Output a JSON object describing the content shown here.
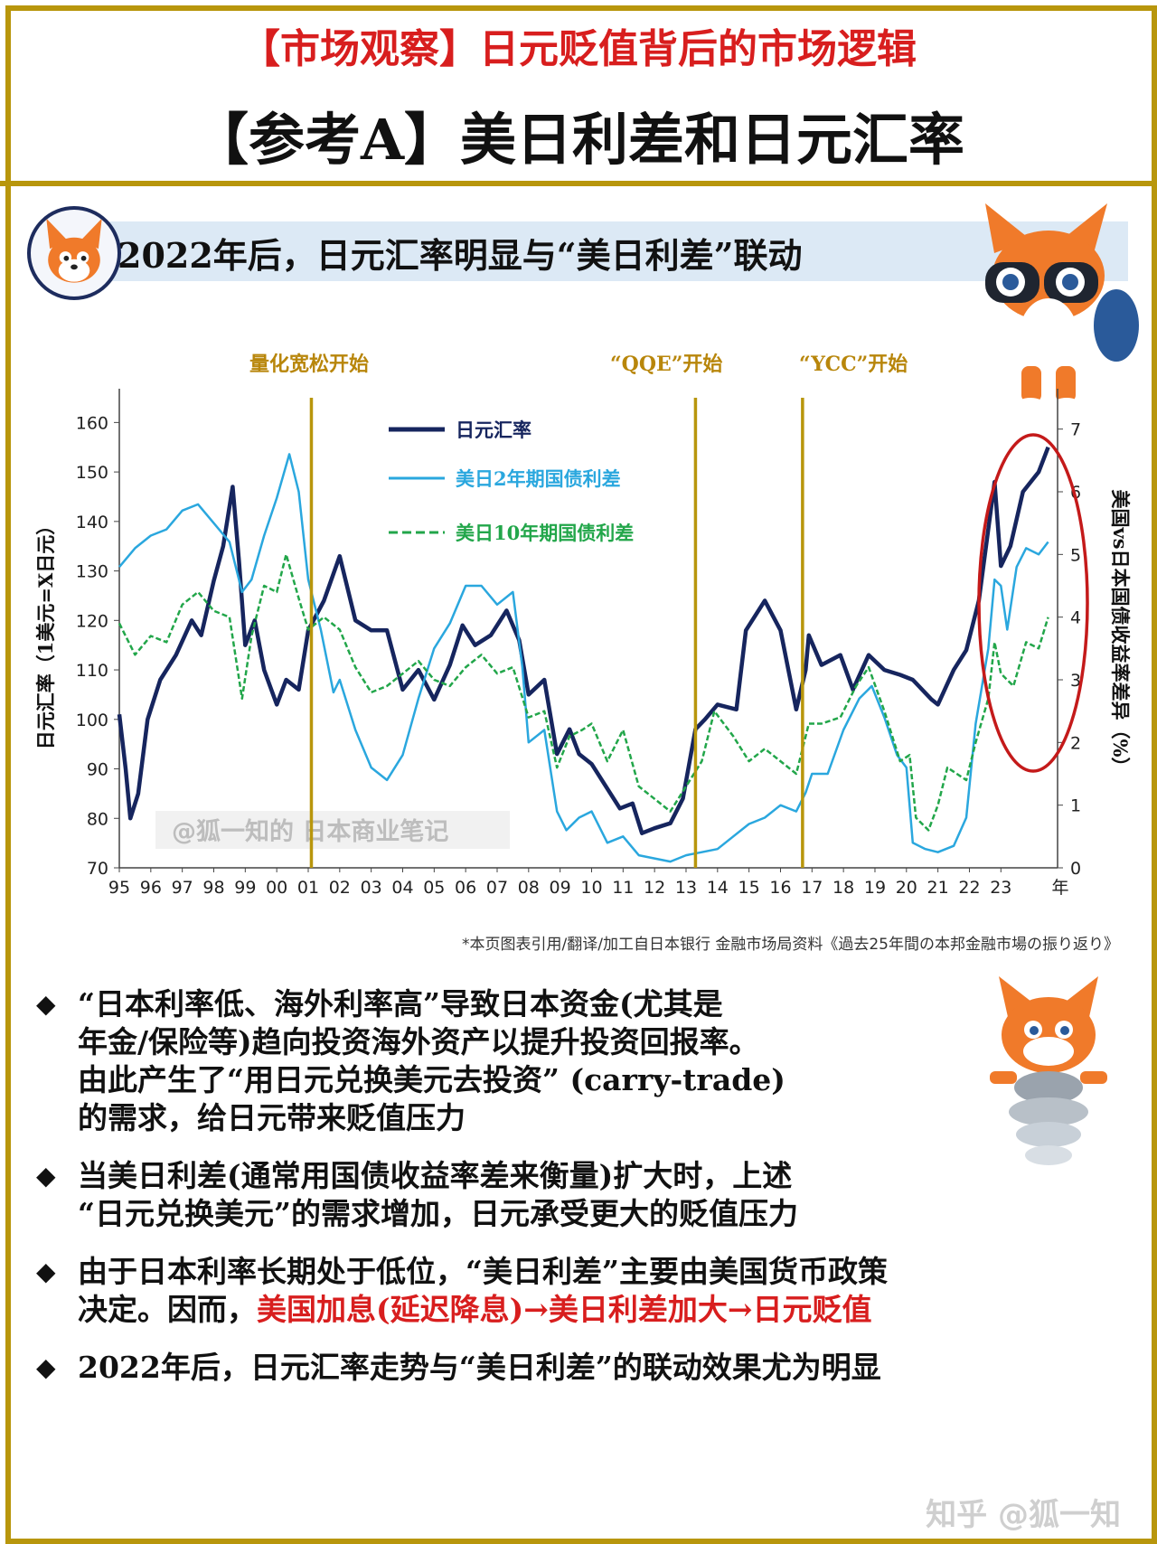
{
  "header": {
    "title": "【市场观察】日元贬值背后的市场逻辑",
    "subtitle": "【参考A】美日利差和日元汇率"
  },
  "section": {
    "heading": "2022年后，日元汇率明显与“美日利差”联动"
  },
  "events": [
    {
      "label": "量化宽松开始",
      "x": 2001.1
    },
    {
      "label": "“QQE”开始",
      "x": 2013.3
    },
    {
      "label": "“YCC”开始",
      "x": 2016.7
    }
  ],
  "chart_data": {
    "type": "line",
    "xlabel": "年",
    "x_ticks": [
      "95",
      "96",
      "97",
      "98",
      "99",
      "00",
      "01",
      "02",
      "03",
      "04",
      "05",
      "06",
      "07",
      "08",
      "09",
      "10",
      "11",
      "12",
      "13",
      "14",
      "15",
      "16",
      "17",
      "18",
      "19",
      "20",
      "21",
      "22",
      "23"
    ],
    "xlim": [
      1995,
      2024.8
    ],
    "ylabel": "日元汇率（1美元=X日元）",
    "ylim": [
      70,
      165
    ],
    "y_ticks": [
      70,
      80,
      90,
      100,
      110,
      120,
      130,
      140,
      150,
      160
    ],
    "y2label": "美国vs日本国债收益率差异（%）",
    "y2lim": [
      0,
      7.5
    ],
    "y2_ticks": [
      0,
      1,
      2,
      3,
      4,
      5,
      6,
      7
    ],
    "watermark": "@狐一知的 日本商业笔记",
    "series": [
      {
        "name": "日元汇率",
        "axis": "left",
        "color": "#16255e",
        "style": "solid",
        "points": [
          [
            1995.0,
            101
          ],
          [
            1995.2,
            90
          ],
          [
            1995.35,
            80
          ],
          [
            1995.6,
            85
          ],
          [
            1995.9,
            100
          ],
          [
            1996.3,
            108
          ],
          [
            1996.8,
            113
          ],
          [
            1997.3,
            120
          ],
          [
            1997.6,
            117
          ],
          [
            1998.0,
            128
          ],
          [
            1998.3,
            135
          ],
          [
            1998.6,
            147
          ],
          [
            1998.8,
            132
          ],
          [
            1999.0,
            115
          ],
          [
            1999.3,
            120
          ],
          [
            1999.6,
            110
          ],
          [
            2000.0,
            103
          ],
          [
            2000.3,
            108
          ],
          [
            2000.7,
            106
          ],
          [
            2001.0,
            118
          ],
          [
            2001.5,
            124
          ],
          [
            2002.0,
            133
          ],
          [
            2002.5,
            120
          ],
          [
            2003.0,
            118
          ],
          [
            2003.5,
            118
          ],
          [
            2004.0,
            106
          ],
          [
            2004.5,
            110
          ],
          [
            2005.0,
            104
          ],
          [
            2005.5,
            111
          ],
          [
            2005.9,
            119
          ],
          [
            2006.3,
            115
          ],
          [
            2006.8,
            117
          ],
          [
            2007.3,
            122
          ],
          [
            2007.7,
            116
          ],
          [
            2008.0,
            105
          ],
          [
            2008.5,
            108
          ],
          [
            2008.9,
            93
          ],
          [
            2009.3,
            98
          ],
          [
            2009.6,
            93
          ],
          [
            2010.0,
            91
          ],
          [
            2010.5,
            86
          ],
          [
            2010.9,
            82
          ],
          [
            2011.3,
            83
          ],
          [
            2011.6,
            77
          ],
          [
            2012.0,
            78
          ],
          [
            2012.5,
            79
          ],
          [
            2012.9,
            84
          ],
          [
            2013.3,
            98
          ],
          [
            2013.6,
            100
          ],
          [
            2014.0,
            103
          ],
          [
            2014.6,
            102
          ],
          [
            2014.9,
            118
          ],
          [
            2015.5,
            124
          ],
          [
            2016.0,
            118
          ],
          [
            2016.5,
            102
          ],
          [
            2016.8,
            110
          ],
          [
            2016.9,
            117
          ],
          [
            2017.3,
            111
          ],
          [
            2017.9,
            113
          ],
          [
            2018.3,
            106
          ],
          [
            2018.8,
            113
          ],
          [
            2019.3,
            110
          ],
          [
            2019.8,
            109
          ],
          [
            2020.2,
            108
          ],
          [
            2020.8,
            104
          ],
          [
            2021.0,
            103
          ],
          [
            2021.5,
            110
          ],
          [
            2021.9,
            114
          ],
          [
            2022.3,
            124
          ],
          [
            2022.8,
            148
          ],
          [
            2023.0,
            131
          ],
          [
            2023.3,
            135
          ],
          [
            2023.7,
            146
          ],
          [
            2024.2,
            150
          ],
          [
            2024.5,
            155
          ]
        ]
      },
      {
        "name": "美日2年期国债利差",
        "axis": "right",
        "color": "#2aa7de",
        "style": "solid",
        "points": [
          [
            1995.0,
            4.8
          ],
          [
            1995.5,
            5.1
          ],
          [
            1996.0,
            5.3
          ],
          [
            1996.5,
            5.4
          ],
          [
            1997.0,
            5.7
          ],
          [
            1997.5,
            5.8
          ],
          [
            1998.0,
            5.5
          ],
          [
            1998.5,
            5.2
          ],
          [
            1998.9,
            4.4
          ],
          [
            1999.2,
            4.6
          ],
          [
            1999.6,
            5.3
          ],
          [
            2000.0,
            5.9
          ],
          [
            2000.4,
            6.6
          ],
          [
            2000.7,
            6.0
          ],
          [
            2001.0,
            4.6
          ],
          [
            2001.4,
            3.8
          ],
          [
            2001.8,
            2.8
          ],
          [
            2002.0,
            3.0
          ],
          [
            2002.5,
            2.2
          ],
          [
            2003.0,
            1.6
          ],
          [
            2003.5,
            1.4
          ],
          [
            2004.0,
            1.8
          ],
          [
            2004.5,
            2.7
          ],
          [
            2005.0,
            3.5
          ],
          [
            2005.5,
            3.9
          ],
          [
            2006.0,
            4.5
          ],
          [
            2006.5,
            4.5
          ],
          [
            2007.0,
            4.2
          ],
          [
            2007.5,
            4.4
          ],
          [
            2007.8,
            3.2
          ],
          [
            2008.0,
            2.0
          ],
          [
            2008.5,
            2.2
          ],
          [
            2008.9,
            0.9
          ],
          [
            2009.2,
            0.6
          ],
          [
            2009.6,
            0.8
          ],
          [
            2010.0,
            0.9
          ],
          [
            2010.5,
            0.4
          ],
          [
            2011.0,
            0.5
          ],
          [
            2011.5,
            0.2
          ],
          [
            2012.0,
            0.15
          ],
          [
            2012.5,
            0.1
          ],
          [
            2013.0,
            0.2
          ],
          [
            2013.5,
            0.25
          ],
          [
            2014.0,
            0.3
          ],
          [
            2014.5,
            0.5
          ],
          [
            2015.0,
            0.7
          ],
          [
            2015.5,
            0.8
          ],
          [
            2016.0,
            1.0
          ],
          [
            2016.5,
            0.9
          ],
          [
            2016.8,
            1.2
          ],
          [
            2017.0,
            1.5
          ],
          [
            2017.5,
            1.5
          ],
          [
            2018.0,
            2.2
          ],
          [
            2018.5,
            2.7
          ],
          [
            2018.9,
            2.9
          ],
          [
            2019.3,
            2.4
          ],
          [
            2019.7,
            1.8
          ],
          [
            2020.0,
            1.6
          ],
          [
            2020.2,
            0.4
          ],
          [
            2020.6,
            0.3
          ],
          [
            2021.0,
            0.25
          ],
          [
            2021.5,
            0.35
          ],
          [
            2021.9,
            0.8
          ],
          [
            2022.2,
            2.3
          ],
          [
            2022.6,
            3.5
          ],
          [
            2022.8,
            4.6
          ],
          [
            2023.0,
            4.5
          ],
          [
            2023.2,
            3.8
          ],
          [
            2023.5,
            4.8
          ],
          [
            2023.8,
            5.1
          ],
          [
            2024.2,
            5.0
          ],
          [
            2024.5,
            5.2
          ]
        ]
      },
      {
        "name": "美日10年期国债利差",
        "axis": "right",
        "color": "#22a64a",
        "style": "dashed",
        "points": [
          [
            1995.0,
            3.9
          ],
          [
            1995.5,
            3.4
          ],
          [
            1996.0,
            3.7
          ],
          [
            1996.5,
            3.6
          ],
          [
            1997.0,
            4.2
          ],
          [
            1997.5,
            4.4
          ],
          [
            1998.0,
            4.1
          ],
          [
            1998.5,
            4.0
          ],
          [
            1998.9,
            2.7
          ],
          [
            1999.2,
            3.7
          ],
          [
            1999.6,
            4.5
          ],
          [
            2000.0,
            4.4
          ],
          [
            2000.3,
            5.0
          ],
          [
            2000.7,
            4.3
          ],
          [
            2001.0,
            3.8
          ],
          [
            2001.5,
            4.0
          ],
          [
            2002.0,
            3.8
          ],
          [
            2002.5,
            3.2
          ],
          [
            2003.0,
            2.8
          ],
          [
            2003.5,
            2.9
          ],
          [
            2004.0,
            3.1
          ],
          [
            2004.5,
            3.3
          ],
          [
            2005.0,
            3.0
          ],
          [
            2005.5,
            2.9
          ],
          [
            2006.0,
            3.2
          ],
          [
            2006.5,
            3.4
          ],
          [
            2007.0,
            3.1
          ],
          [
            2007.5,
            3.2
          ],
          [
            2008.0,
            2.4
          ],
          [
            2008.5,
            2.5
          ],
          [
            2008.9,
            1.6
          ],
          [
            2009.3,
            2.1
          ],
          [
            2009.7,
            2.2
          ],
          [
            2010.0,
            2.3
          ],
          [
            2010.5,
            1.7
          ],
          [
            2011.0,
            2.2
          ],
          [
            2011.5,
            1.3
          ],
          [
            2012.0,
            1.1
          ],
          [
            2012.5,
            0.9
          ],
          [
            2013.0,
            1.3
          ],
          [
            2013.5,
            1.7
          ],
          [
            2013.9,
            2.5
          ],
          [
            2014.5,
            2.1
          ],
          [
            2015.0,
            1.7
          ],
          [
            2015.5,
            1.9
          ],
          [
            2016.0,
            1.7
          ],
          [
            2016.5,
            1.5
          ],
          [
            2016.9,
            2.3
          ],
          [
            2017.3,
            2.3
          ],
          [
            2017.9,
            2.4
          ],
          [
            2018.4,
            2.9
          ],
          [
            2018.8,
            3.2
          ],
          [
            2019.3,
            2.5
          ],
          [
            2019.8,
            1.7
          ],
          [
            2020.1,
            1.8
          ],
          [
            2020.3,
            0.8
          ],
          [
            2020.7,
            0.6
          ],
          [
            2021.0,
            1.0
          ],
          [
            2021.3,
            1.6
          ],
          [
            2021.9,
            1.4
          ],
          [
            2022.2,
            2.0
          ],
          [
            2022.6,
            2.7
          ],
          [
            2022.8,
            3.6
          ],
          [
            2023.0,
            3.1
          ],
          [
            2023.4,
            2.9
          ],
          [
            2023.8,
            3.6
          ],
          [
            2024.2,
            3.5
          ],
          [
            2024.5,
            4.0
          ]
        ]
      }
    ]
  },
  "source_note": "*本页图表引用/翻译/加工自日本银行 金融市场局资料《過去25年間の本邦金融市場の振り返り》",
  "bullets": [
    {
      "text": "“日本利率低、海外利率高”导致日本资金(尤其是\n年金/保险等)趋向投资海外资产以提升投资回报率。\n由此产生了“用日元兑换美元去投资” (carry-trade)\n的需求，给日元带来贬值压力"
    },
    {
      "text": "当美日利差(通常用国债收益率差来衡量)扩大时，上述\n“日元兑换美元”的需求增加，日元承受更大的贬值压力"
    },
    {
      "text": "由于日本利率长期处于低位，“美日利差”主要由美国货币政策\n决定。因而，",
      "highlight": "美国加息(延迟降息)→美日利差加大→日元贬值"
    },
    {
      "text": "2022年后，日元汇率走势与“美日利差”的联动效果尤为明显"
    }
  ],
  "watermark_footer": "知乎 @狐一知",
  "colors": {
    "accent_gold": "#b8960c",
    "title_red": "#d81e1e",
    "highlight_oval": "#c41a1a"
  }
}
